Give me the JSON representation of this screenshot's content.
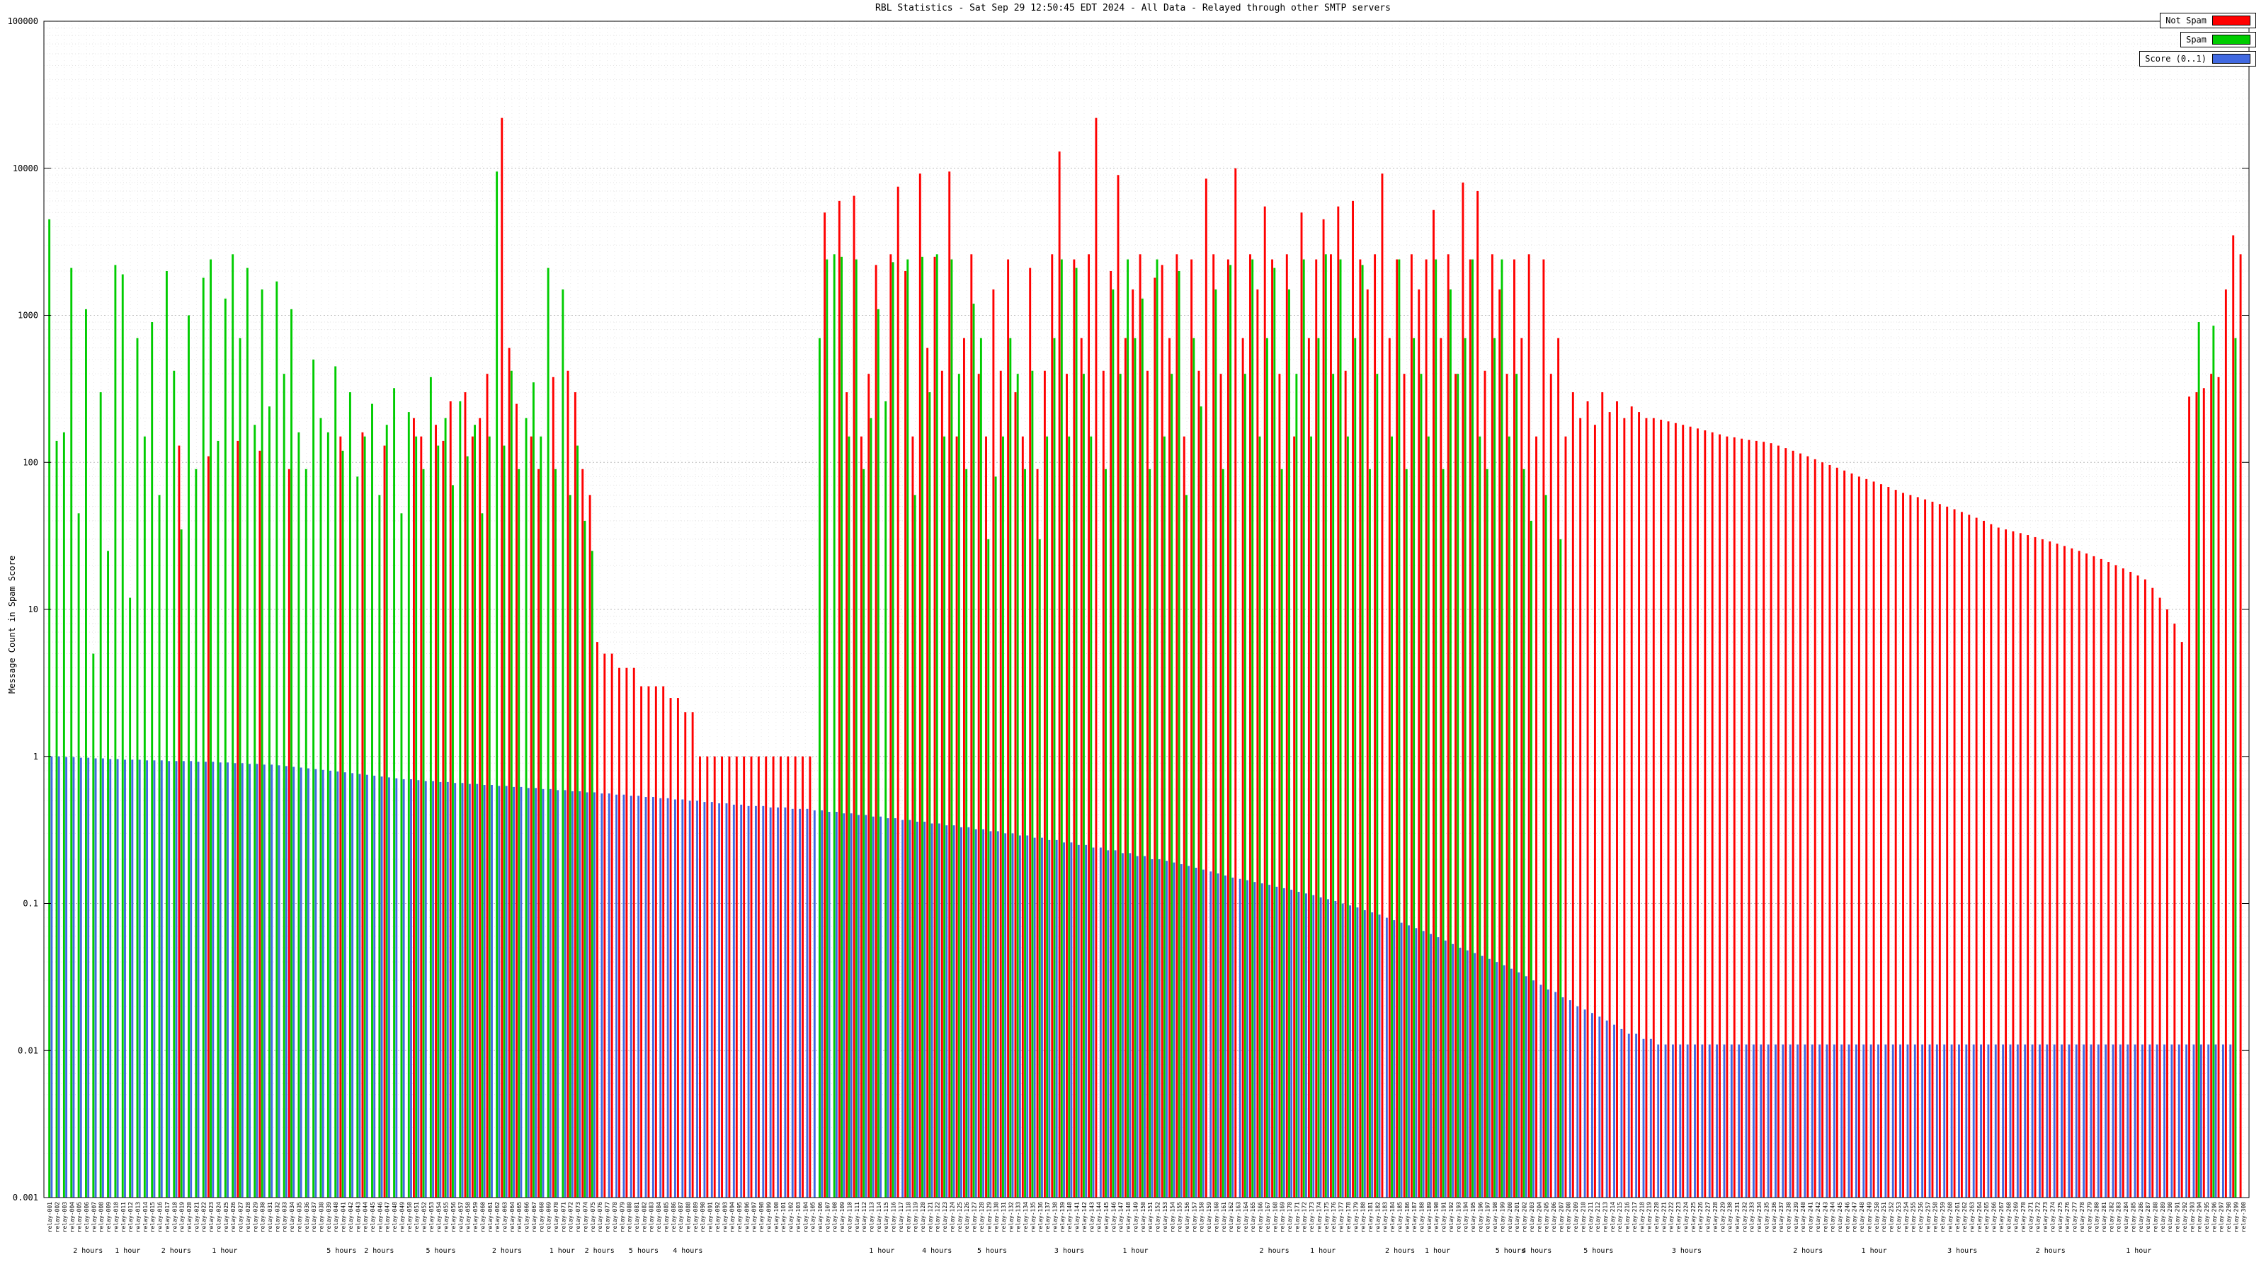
{
  "chart_data": {
    "type": "bar",
    "title": "RBL Statistics - Sat Sep 29 12:50:45 EDT 2024 - All Data - Relayed through other SMTP servers",
    "ylabel": "Message Count in Spam Score",
    "yscale": "log",
    "ylim": [
      0.001,
      100000
    ],
    "ytick_values": [
      100000,
      10000,
      1000,
      100,
      10,
      1,
      0.1,
      0.01,
      0.001
    ],
    "ytick_labels": [
      "100000",
      "10000",
      "1000",
      "100",
      "10",
      "1",
      "0.1",
      "0.01",
      "0.001"
    ],
    "grid": true,
    "legend_position": "top-right",
    "legend": [
      {
        "name": "Not Spam",
        "color": "#ff0000"
      },
      {
        "name": "Spam",
        "color": "#00cc00"
      },
      {
        "name": "Score (0..1)",
        "color": "#4169e1"
      }
    ],
    "x_axis": {
      "tick_count": 300,
      "tick_label_prefix": "relay-",
      "labels_illegible": true,
      "annotations": [
        {
          "text": "2 hours",
          "x": 0.02
        },
        {
          "text": "1 hour",
          "x": 0.038
        },
        {
          "text": "2 hours",
          "x": 0.06
        },
        {
          "text": "1 hour",
          "x": 0.082
        },
        {
          "text": "5 hours",
          "x": 0.135
        },
        {
          "text": "2 hours",
          "x": 0.152
        },
        {
          "text": "5 hours",
          "x": 0.18
        },
        {
          "text": "2 hours",
          "x": 0.21
        },
        {
          "text": "1 hour",
          "x": 0.235
        },
        {
          "text": "2 hours",
          "x": 0.252
        },
        {
          "text": "5 hours",
          "x": 0.272
        },
        {
          "text": "4 hours",
          "x": 0.292
        },
        {
          "text": "1 hour",
          "x": 0.38
        },
        {
          "text": "4 hours",
          "x": 0.405
        },
        {
          "text": "5 hours",
          "x": 0.43
        },
        {
          "text": "3 hours",
          "x": 0.465
        },
        {
          "text": "1 hour",
          "x": 0.495
        },
        {
          "text": "2 hours",
          "x": 0.558
        },
        {
          "text": "1 hour",
          "x": 0.58
        },
        {
          "text": "2 hours",
          "x": 0.615
        },
        {
          "text": "1 hour",
          "x": 0.632
        },
        {
          "text": "5 hours",
          "x": 0.665
        },
        {
          "text": "4 hours",
          "x": 0.677
        },
        {
          "text": "5 hours",
          "x": 0.705
        },
        {
          "text": "3 hours",
          "x": 0.745
        },
        {
          "text": "2 hours",
          "x": 0.8
        },
        {
          "text": "1 hour",
          "x": 0.83
        },
        {
          "text": "3 hours",
          "x": 0.87
        },
        {
          "text": "2 hours",
          "x": 0.91
        },
        {
          "text": "1 hour",
          "x": 0.95
        }
      ]
    },
    "series": [
      {
        "name": "Not Spam",
        "color": "#ff0000",
        "values": [
          0,
          0,
          0,
          0,
          0,
          0,
          0,
          0,
          0,
          0,
          0,
          0,
          0,
          0,
          0,
          0,
          0,
          0,
          130,
          0,
          0,
          0,
          110,
          0,
          0,
          0,
          140,
          0,
          0,
          120,
          0,
          0,
          0,
          90,
          0,
          0,
          0,
          0,
          0,
          0,
          150,
          0,
          0,
          160,
          0,
          0,
          130,
          0,
          0,
          0,
          200,
          150,
          0,
          180,
          140,
          260,
          0,
          300,
          150,
          200,
          400,
          0,
          22000,
          600,
          250,
          0,
          150,
          90,
          0,
          380,
          0,
          420,
          300,
          90,
          60,
          6,
          5,
          5,
          4,
          4,
          4,
          3,
          3,
          3,
          3,
          2.5,
          2.5,
          2,
          2,
          1,
          1,
          1,
          1,
          1,
          1,
          1,
          1,
          1,
          1,
          1,
          1,
          1,
          1,
          1,
          1,
          0,
          5000,
          0,
          6000,
          300,
          6500,
          150,
          400,
          2200,
          0,
          2600,
          7500,
          2000,
          150,
          9200,
          600,
          2500,
          420,
          9500,
          150,
          700,
          2600,
          400,
          150,
          1500,
          420,
          2400,
          300,
          150,
          2100,
          90,
          420,
          2600,
          13000,
          400,
          2400,
          700,
          2600,
          22000,
          420,
          2000,
          9000,
          700,
          1500,
          2600,
          420,
          1800,
          2200,
          700,
          2600,
          150,
          2400,
          420,
          8500,
          2600,
          400,
          2400,
          10000,
          700,
          2600,
          1500,
          5500,
          2400,
          400,
          2600,
          150,
          5000,
          700,
          2400,
          4500,
          2600,
          5500,
          420,
          6000,
          2400,
          1500,
          2600,
          9200,
          700,
          2400,
          400,
          2600,
          1500,
          2400,
          5200,
          700,
          2600,
          400,
          8000,
          2400,
          7000,
          420,
          2600,
          1500,
          400,
          2400,
          700,
          2600,
          150,
          2400,
          400,
          700,
          150,
          300,
          200,
          260,
          180,
          300,
          220,
          260,
          200,
          240,
          220,
          200,
          200,
          195,
          190,
          185,
          180,
          175,
          170,
          165,
          160,
          155,
          150,
          148,
          145,
          142,
          140,
          138,
          135,
          130,
          125,
          120,
          115,
          110,
          105,
          100,
          96,
          92,
          88,
          84,
          80,
          77,
          74,
          71,
          68,
          65,
          62,
          60,
          58,
          56,
          54,
          52,
          50,
          48,
          46,
          44,
          42,
          40,
          38,
          36,
          35,
          34,
          33,
          32,
          31,
          30,
          29,
          28,
          27,
          26,
          25,
          24,
          23,
          22,
          21,
          20,
          19,
          18,
          17,
          16,
          14,
          12,
          10,
          8,
          6,
          280,
          300,
          320,
          400,
          380,
          1500,
          3500,
          2600
        ]
      },
      {
        "name": "Spam",
        "color": "#00cc00",
        "values": [
          4500,
          140,
          160,
          2100,
          45,
          1100,
          5,
          300,
          25,
          2200,
          1900,
          12,
          700,
          150,
          900,
          60,
          2000,
          420,
          35,
          1000,
          90,
          1800,
          2400,
          140,
          1300,
          2600,
          700,
          2100,
          180,
          1500,
          240,
          1700,
          400,
          1100,
          160,
          90,
          500,
          200,
          160,
          450,
          120,
          300,
          80,
          150,
          250,
          60,
          180,
          320,
          45,
          220,
          150,
          90,
          380,
          130,
          200,
          70,
          260,
          110,
          180,
          45,
          150,
          9500,
          130,
          420,
          90,
          200,
          350,
          150,
          2100,
          90,
          1500,
          60,
          130,
          40,
          25,
          0,
          0,
          0,
          0,
          0,
          0,
          0,
          0,
          0,
          0,
          0,
          0,
          0,
          0,
          0,
          0,
          0,
          0,
          0,
          0,
          0,
          0,
          0,
          0,
          0,
          0,
          0,
          0,
          0,
          0,
          700,
          2400,
          2600,
          2500,
          150,
          2400,
          90,
          200,
          1100,
          260,
          2300,
          0,
          2400,
          60,
          2500,
          300,
          2600,
          150,
          2400,
          400,
          90,
          1200,
          700,
          30,
          80,
          150,
          700,
          400,
          90,
          420,
          30,
          150,
          700,
          2400,
          150,
          2100,
          400,
          150,
          0,
          90,
          1500,
          400,
          2400,
          700,
          1300,
          90,
          2400,
          150,
          400,
          2000,
          60,
          700,
          240,
          0,
          1500,
          90,
          2200,
          0,
          400,
          2400,
          150,
          700,
          2100,
          90,
          1500,
          400,
          2400,
          150,
          700,
          2600,
          400,
          2400,
          150,
          700,
          2200,
          90,
          400,
          0,
          150,
          2400,
          90,
          700,
          400,
          150,
          2400,
          90,
          1500,
          400,
          700,
          2400,
          150,
          90,
          700,
          2400,
          150,
          400,
          90,
          40,
          0,
          60,
          0,
          30,
          0,
          0,
          0,
          0,
          0,
          0,
          0,
          0,
          0,
          0,
          0,
          0,
          0,
          0,
          0,
          0,
          0,
          0,
          0,
          0,
          0,
          0,
          0,
          0,
          0,
          0,
          0,
          0,
          0,
          0,
          0,
          0,
          0,
          0,
          0,
          0,
          0,
          0,
          0,
          0,
          0,
          0,
          0,
          0,
          0,
          0,
          0,
          0,
          0,
          0,
          0,
          0,
          0,
          0,
          0,
          0,
          0,
          0,
          0,
          0,
          0,
          0,
          0,
          0,
          0,
          0,
          0,
          0,
          0,
          0,
          0,
          0,
          0,
          0,
          0,
          0,
          0,
          0,
          0,
          0,
          0,
          0,
          0,
          0,
          0,
          0,
          900,
          0,
          850,
          0,
          0,
          700,
          0
        ]
      },
      {
        "name": "Score (0..1)",
        "color": "#4169e1",
        "values": [
          1,
          1,
          0.99,
          0.99,
          0.98,
          0.98,
          0.97,
          0.97,
          0.96,
          0.96,
          0.95,
          0.95,
          0.95,
          0.94,
          0.94,
          0.94,
          0.93,
          0.93,
          0.93,
          0.93,
          0.92,
          0.92,
          0.92,
          0.91,
          0.91,
          0.9,
          0.9,
          0.89,
          0.89,
          0.88,
          0.88,
          0.87,
          0.86,
          0.85,
          0.84,
          0.83,
          0.82,
          0.81,
          0.8,
          0.79,
          0.78,
          0.77,
          0.76,
          0.75,
          0.74,
          0.73,
          0.72,
          0.71,
          0.7,
          0.7,
          0.69,
          0.68,
          0.68,
          0.67,
          0.67,
          0.66,
          0.66,
          0.65,
          0.65,
          0.64,
          0.64,
          0.63,
          0.63,
          0.62,
          0.62,
          0.61,
          0.61,
          0.6,
          0.6,
          0.59,
          0.59,
          0.58,
          0.58,
          0.57,
          0.57,
          0.56,
          0.56,
          0.55,
          0.55,
          0.54,
          0.54,
          0.53,
          0.53,
          0.52,
          0.52,
          0.51,
          0.51,
          0.5,
          0.5,
          0.49,
          0.49,
          0.48,
          0.48,
          0.47,
          0.47,
          0.46,
          0.46,
          0.46,
          0.45,
          0.45,
          0.45,
          0.44,
          0.44,
          0.44,
          0.43,
          0.43,
          0.42,
          0.42,
          0.41,
          0.41,
          0.4,
          0.4,
          0.39,
          0.39,
          0.38,
          0.38,
          0.37,
          0.37,
          0.36,
          0.36,
          0.35,
          0.35,
          0.34,
          0.34,
          0.33,
          0.33,
          0.32,
          0.32,
          0.31,
          0.31,
          0.3,
          0.3,
          0.29,
          0.29,
          0.28,
          0.28,
          0.27,
          0.27,
          0.26,
          0.26,
          0.25,
          0.25,
          0.24,
          0.24,
          0.23,
          0.23,
          0.22,
          0.22,
          0.21,
          0.21,
          0.2,
          0.2,
          0.195,
          0.19,
          0.185,
          0.18,
          0.175,
          0.17,
          0.165,
          0.16,
          0.155,
          0.15,
          0.147,
          0.144,
          0.14,
          0.137,
          0.134,
          0.13,
          0.127,
          0.124,
          0.12,
          0.117,
          0.114,
          0.11,
          0.107,
          0.104,
          0.1,
          0.097,
          0.094,
          0.09,
          0.087,
          0.084,
          0.08,
          0.077,
          0.074,
          0.071,
          0.068,
          0.065,
          0.062,
          0.059,
          0.056,
          0.053,
          0.05,
          0.048,
          0.046,
          0.044,
          0.042,
          0.04,
          0.038,
          0.036,
          0.034,
          0.032,
          0.03,
          0.028,
          0.026,
          0.025,
          0.023,
          0.022,
          0.02,
          0.019,
          0.018,
          0.017,
          0.016,
          0.015,
          0.014,
          0.013,
          0.013,
          0.012,
          0.012,
          0.011,
          0.011,
          0.011,
          0.011,
          0.011,
          0.011,
          0.011,
          0.011,
          0.011,
          0.011,
          0.011,
          0.011,
          0.011,
          0.011,
          0.011,
          0.011,
          0.011,
          0.011,
          0.011,
          0.011,
          0.011,
          0.011,
          0.011,
          0.011,
          0.011,
          0.011,
          0.011,
          0.011,
          0.011,
          0.011,
          0.011,
          0.011,
          0.011,
          0.011,
          0.011,
          0.011,
          0.011,
          0.011,
          0.011,
          0.011,
          0.011,
          0.011,
          0.011,
          0.011,
          0.011,
          0.011,
          0.011,
          0.011,
          0.011,
          0.011,
          0.011,
          0.011,
          0.011,
          0.011,
          0.011,
          0.011,
          0.011,
          0.011,
          0.011,
          0.011,
          0.011,
          0.011,
          0.011,
          0.011,
          0.011,
          0.011,
          0.011,
          0.011,
          0.011,
          0.011,
          0.011,
          0.011,
          0.011,
          0.011,
          0.011,
          0.011,
          0.011,
          0.011,
          0.011
        ]
      }
    ]
  }
}
